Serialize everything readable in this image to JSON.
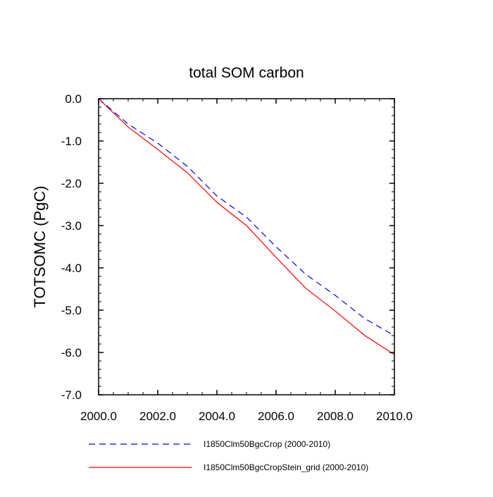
{
  "chart_data": {
    "type": "line",
    "title": "total SOM carbon",
    "xlabel": "",
    "ylabel": "TOTSOMC  (PgC)",
    "xlim": [
      2000,
      2010
    ],
    "ylim": [
      -7,
      0
    ],
    "x_ticks": [
      2000,
      2002,
      2004,
      2006,
      2008,
      2010
    ],
    "x_tick_labels": [
      "2000.0",
      "2002.0",
      "2004.0",
      "2006.0",
      "2008.0",
      "2010.0"
    ],
    "y_ticks": [
      0,
      -1,
      -2,
      -3,
      -4,
      -5,
      -6,
      -7
    ],
    "y_tick_labels": [
      "0.0",
      "-1.0",
      "-2.0",
      "-3.0",
      "-4.0",
      "-5.0",
      "-6.0",
      "-7.0"
    ],
    "x": [
      2000,
      2001,
      2002,
      2003,
      2004,
      2005,
      2006,
      2007,
      2008,
      2009,
      2010
    ],
    "series": [
      {
        "name": "I1850Clm50BgcCrop (2000-2010)",
        "color": "#0000ff",
        "style": "dashed",
        "values": [
          0.0,
          -0.6,
          -1.05,
          -1.6,
          -2.3,
          -2.8,
          -3.5,
          -4.15,
          -4.65,
          -5.2,
          -5.6
        ]
      },
      {
        "name": "I1850Clm50BgcCropStein_grid (2000-2010)",
        "color": "#ff0000",
        "style": "solid",
        "values": [
          0.0,
          -0.67,
          -1.2,
          -1.75,
          -2.45,
          -3.0,
          -3.75,
          -4.48,
          -5.02,
          -5.6,
          -6.05
        ]
      }
    ],
    "grid": false,
    "legend_position": "bottom"
  }
}
